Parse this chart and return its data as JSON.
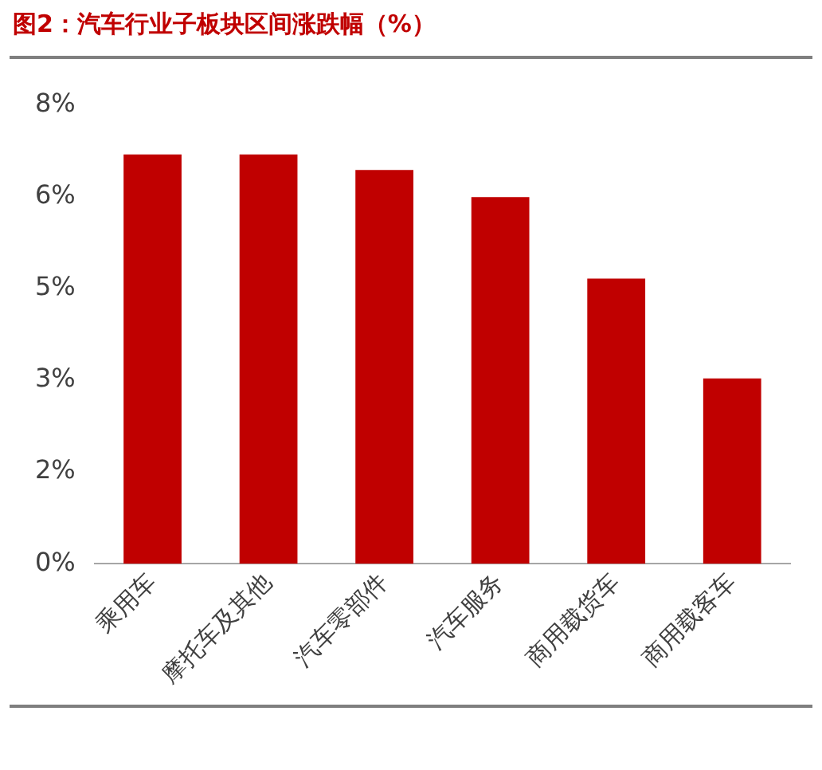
{
  "chart_data": {
    "type": "bar",
    "title": "图2：汽车行业子板块区间涨跌幅（%）",
    "categories": [
      "乘用车",
      "摩托车及其他",
      "汽车零部件",
      "汽车服务",
      "商用载货车",
      "商用载客车"
    ],
    "values": [
      7.13,
      7.13,
      6.86,
      6.39,
      4.97,
      3.23
    ],
    "color": "#c00000",
    "ylim": [
      0,
      8
    ],
    "yticks": [
      {
        "value": 0,
        "label": "0%"
      },
      {
        "value": 1.6,
        "label": "2%"
      },
      {
        "value": 3.2,
        "label": "3%"
      },
      {
        "value": 4.8,
        "label": "5%"
      },
      {
        "value": 6.4,
        "label": "6%"
      },
      {
        "value": 8,
        "label": "8%"
      }
    ],
    "grid": false,
    "legend": false
  }
}
